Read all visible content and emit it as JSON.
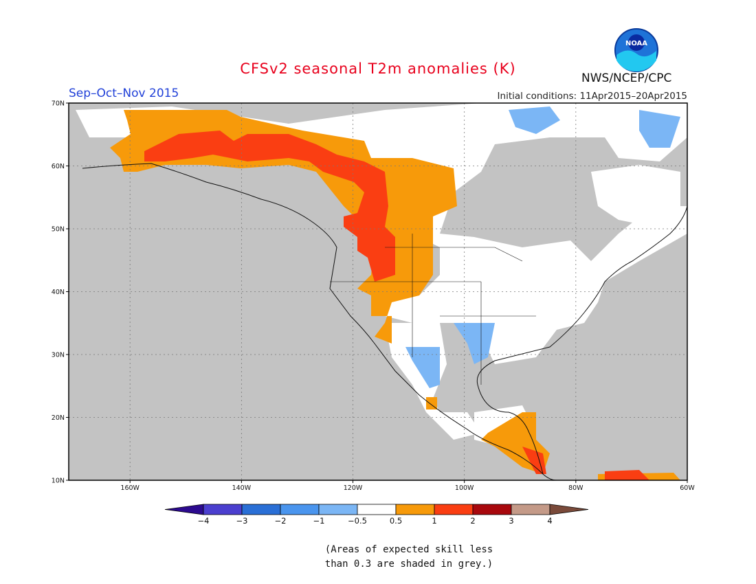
{
  "title": "CFSv2 seasonal T2m anomalies (K)",
  "period": "Sep–Oct–Nov 2015",
  "initial_conditions": "Initial conditions: 11Apr2015–20Apr2015",
  "agency": "NWS/NCEP/CPC",
  "logo_text": "NOAA",
  "lat_labels": [
    "70N",
    "60N",
    "50N",
    "40N",
    "30N",
    "20N",
    "10N"
  ],
  "lon_labels": [
    "160W",
    "140W",
    "120W",
    "100W",
    "80W",
    "60W"
  ],
  "colorbar": {
    "ticks": [
      "−4",
      "−3",
      "−2",
      "−1",
      "−0.5",
      "0.5",
      "1",
      "2",
      "3",
      "4"
    ],
    "colors": [
      "#2c0a8f",
      "#4b3fcf",
      "#2a6fd6",
      "#4a95ee",
      "#7bb6f5",
      "#ffffff",
      "#f79a0a",
      "#fa3e12",
      "#a8080d",
      "#c49a88",
      "#7a4a3a"
    ]
  },
  "note_line1": "(Areas of expected skill less",
  "note_line2": "than 0.3 are shaded in grey.)",
  "colors": {
    "grey": "#c3c3c3",
    "none": "#ffffff"
  }
}
